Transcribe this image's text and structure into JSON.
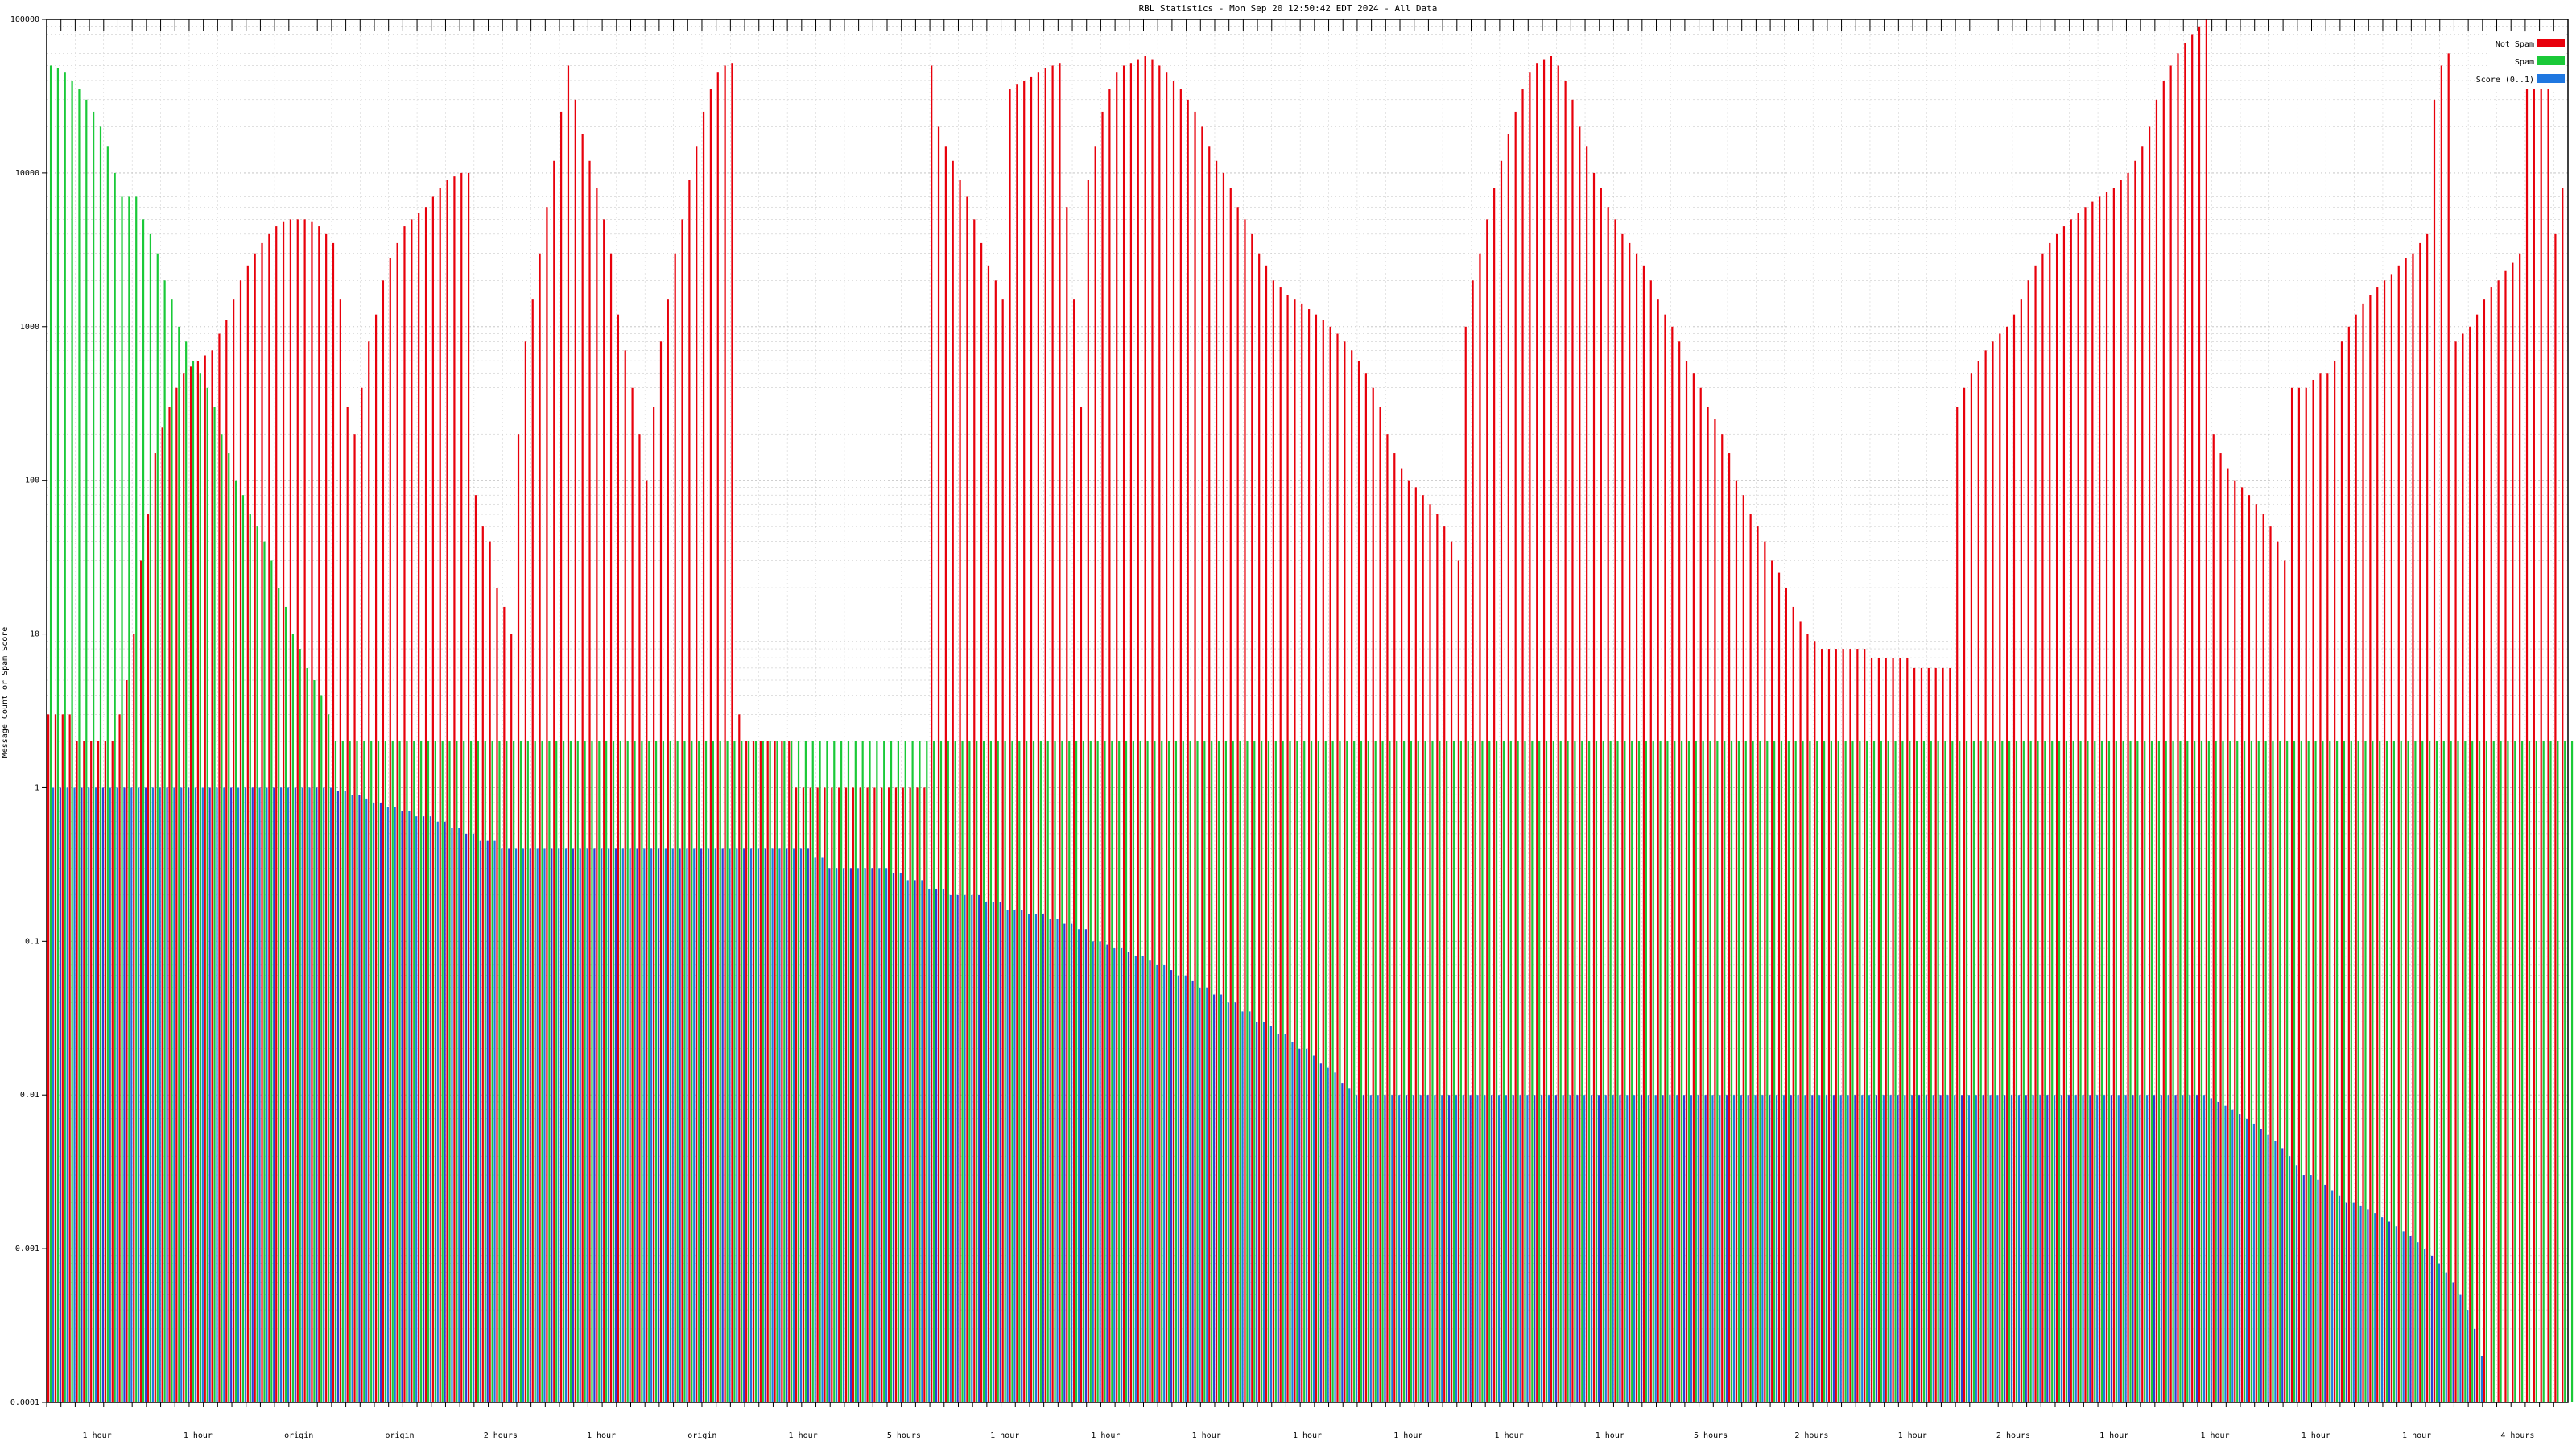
{
  "chart_data": {
    "type": "bar",
    "title": "RBL Statistics - Mon Sep 20 12:50:42 EDT 2024 - All Data",
    "ylabel": "Message Count or Spam Score",
    "xlabel": "",
    "y_scale": "log",
    "ylim": [
      0.0001,
      100000
    ],
    "y_ticks": [
      100000,
      10000,
      1000,
      100,
      10,
      1,
      0.1,
      0.01,
      0.001,
      0.0001
    ],
    "y_tick_labels": [
      "100000",
      "10000",
      "1000",
      "100",
      "10",
      "1",
      "0.1",
      "0.01",
      "0.001",
      "0.0001"
    ],
    "grid": true,
    "legend_position": "top-right",
    "colors": {
      "not_spam": "#e8000b",
      "spam": "#1ac938",
      "score": "#1f77e0",
      "score_alt": "#2a3fd8",
      "grid": "#bfbfbf",
      "frame": "#000000"
    },
    "series": [
      {
        "name": "Not Spam",
        "color": "#e8000b",
        "values": [
          3,
          3,
          3,
          3,
          2,
          2,
          2,
          2,
          2,
          2,
          3,
          5,
          10,
          30,
          60,
          150,
          220,
          300,
          400,
          500,
          550,
          600,
          650,
          700,
          900,
          1100,
          1500,
          2000,
          2500,
          3000,
          3500,
          4000,
          4500,
          4800,
          5000,
          5000,
          5000,
          4800,
          4500,
          4000,
          3500,
          1500,
          300,
          200,
          400,
          800,
          1200,
          2000,
          2800,
          3500,
          4500,
          5000,
          5500,
          6000,
          7000,
          8000,
          9000,
          9500,
          10000,
          10000,
          80,
          50,
          40,
          20,
          15,
          10,
          200,
          800,
          1500,
          3000,
          6000,
          12000,
          25000,
          50000,
          30000,
          18000,
          12000,
          8000,
          5000,
          3000,
          1200,
          700,
          400,
          200,
          100,
          300,
          800,
          1500,
          3000,
          5000,
          9000,
          15000,
          25000,
          35000,
          45000,
          50000,
          52000,
          3,
          2,
          2,
          2,
          2,
          2,
          2,
          2,
          1,
          1,
          1,
          1,
          1,
          1,
          1,
          1,
          1,
          1,
          1,
          1,
          1,
          1,
          1,
          1,
          1,
          1,
          1,
          50000,
          20000,
          15000,
          12000,
          9000,
          7000,
          5000,
          3500,
          2500,
          2000,
          1500,
          35000,
          38000,
          40000,
          42000,
          45000,
          48000,
          50000,
          52000,
          6000,
          1500,
          300,
          9000,
          15000,
          25000,
          35000,
          45000,
          50000,
          52000,
          55000,
          58000,
          55000,
          50000,
          45000,
          40000,
          35000,
          30000,
          25000,
          20000,
          15000,
          12000,
          10000,
          8000,
          6000,
          5000,
          4000,
          3000,
          2500,
          2000,
          1800,
          1600,
          1500,
          1400,
          1300,
          1200,
          1100,
          1000,
          900,
          800,
          700,
          600,
          500,
          400,
          300,
          200,
          150,
          120,
          100,
          90,
          80,
          70,
          60,
          50,
          40,
          30,
          1000,
          2000,
          3000,
          5000,
          8000,
          12000,
          18000,
          25000,
          35000,
          45000,
          52000,
          55000,
          58000,
          50000,
          40000,
          30000,
          20000,
          15000,
          10000,
          8000,
          6000,
          5000,
          4000,
          3500,
          3000,
          2500,
          2000,
          1500,
          1200,
          1000,
          800,
          600,
          500,
          400,
          300,
          250,
          200,
          150,
          100,
          80,
          60,
          50,
          40,
          30,
          25,
          20,
          15,
          12,
          10,
          9,
          8,
          8,
          8,
          8,
          8,
          8,
          8,
          7,
          7,
          7,
          7,
          7,
          7,
          6,
          6,
          6,
          6,
          6,
          6,
          300,
          400,
          500,
          600,
          700,
          800,
          900,
          1000,
          1200,
          1500,
          2000,
          2500,
          3000,
          3500,
          4000,
          4500,
          5000,
          5500,
          6000,
          6500,
          7000,
          7500,
          8000,
          9000,
          10000,
          12000,
          15000,
          20000,
          30000,
          40000,
          50000,
          60000,
          70000,
          80000,
          90000,
          100000,
          200,
          150,
          120,
          100,
          90,
          80,
          70,
          60,
          50,
          40,
          30,
          400,
          400,
          400,
          450,
          500,
          500,
          600,
          800,
          1000,
          1200,
          1400,
          1600,
          1800,
          2000,
          2200,
          2500,
          2800,
          3000,
          3500,
          4000,
          30000,
          50000,
          60000,
          800,
          900,
          1000,
          1200,
          1500,
          1800,
          2000,
          2300,
          2600,
          3000,
          55000,
          60000,
          65000,
          70000,
          4000,
          8000
        ]
      },
      {
        "name": "Spam",
        "color": "#1ac938",
        "values": [
          50000,
          48000,
          45000,
          40000,
          35000,
          30000,
          25000,
          20000,
          15000,
          10000,
          7000,
          7000,
          7000,
          5000,
          4000,
          3000,
          2000,
          1500,
          1000,
          800,
          600,
          500,
          400,
          300,
          200,
          150,
          100,
          80,
          60,
          50,
          40,
          30,
          20,
          15,
          10,
          8,
          6,
          5,
          4,
          3,
          2,
          2,
          2,
          2,
          2,
          2,
          2,
          2,
          2,
          2,
          2,
          2,
          2,
          2,
          2,
          2,
          2,
          2,
          2,
          2,
          2,
          2,
          2,
          2,
          2,
          2,
          2,
          2,
          2,
          2,
          2,
          2,
          2,
          2,
          2,
          2,
          2,
          2,
          2,
          2,
          2,
          2,
          2,
          2,
          2,
          2,
          2,
          2,
          2,
          2,
          2,
          2,
          2,
          2,
          2,
          2,
          2,
          2,
          2,
          2,
          2,
          2,
          2,
          2,
          2,
          2,
          2,
          2,
          2,
          2,
          2,
          2,
          2,
          2,
          2,
          2,
          2,
          2,
          2,
          2,
          2,
          2,
          2,
          2,
          2,
          2,
          2,
          2,
          2,
          2,
          2,
          2,
          2,
          2,
          2,
          2,
          2,
          2,
          2,
          2,
          2,
          2,
          2,
          2,
          2,
          2,
          2,
          2,
          2,
          2,
          2,
          2,
          2,
          2,
          2,
          2,
          2,
          2,
          2,
          2,
          2,
          2,
          2,
          2,
          2,
          2,
          2,
          2,
          2,
          2,
          2,
          2,
          2,
          2,
          2,
          2,
          2,
          2,
          2,
          2,
          2,
          2,
          2,
          2,
          2,
          2,
          2,
          2,
          2,
          2,
          2,
          2,
          2,
          2,
          2,
          2,
          2,
          2,
          2,
          2,
          2,
          2,
          2,
          2,
          2,
          2,
          2,
          2,
          2,
          2,
          2,
          2,
          2,
          2,
          2,
          2,
          2,
          2,
          2,
          2,
          2,
          2,
          2,
          2,
          2,
          2,
          2,
          2,
          2,
          2,
          2,
          2,
          2,
          2,
          2,
          2,
          2,
          2,
          2,
          2,
          2,
          2,
          2,
          2,
          2,
          2,
          2,
          2,
          2,
          2,
          2,
          2,
          2,
          2,
          2,
          2,
          2,
          2,
          2,
          2,
          2,
          2,
          2,
          2,
          2,
          2,
          2,
          2,
          2,
          2,
          2,
          2,
          2,
          2,
          2,
          2,
          2,
          2,
          2,
          2,
          2,
          2,
          2,
          2,
          2,
          2,
          2,
          2,
          2,
          2,
          2,
          2,
          2,
          2,
          2,
          2,
          2,
          2,
          2,
          2,
          2,
          2,
          2,
          2,
          2,
          2,
          2,
          2,
          2,
          2,
          2,
          2,
          2,
          2,
          2,
          2,
          2,
          2,
          2,
          2,
          2,
          2,
          2,
          2,
          2,
          2,
          2,
          2,
          2,
          2,
          2,
          2,
          2,
          2,
          2,
          2,
          2,
          2,
          2,
          2,
          2,
          2,
          2,
          2,
          2,
          2,
          2,
          2,
          2,
          2,
          2,
          2,
          2,
          2,
          2,
          2,
          2,
          2,
          2,
          2,
          2,
          2,
          2,
          2,
          2,
          2,
          2
        ]
      },
      {
        "name": "Score (0..1)",
        "color": "#1f77e0",
        "values": [
          1,
          1,
          1,
          1,
          1,
          1,
          1,
          1,
          1,
          1,
          1,
          1,
          1,
          1,
          1,
          1,
          1,
          1,
          1,
          1,
          1,
          1,
          1,
          1,
          1,
          1,
          1,
          1,
          1,
          1,
          1,
          1,
          1,
          1,
          1,
          1,
          1,
          1,
          1,
          1,
          0.95,
          0.95,
          0.9,
          0.9,
          0.85,
          0.8,
          0.8,
          0.75,
          0.75,
          0.7,
          0.7,
          0.65,
          0.65,
          0.65,
          0.6,
          0.6,
          0.55,
          0.55,
          0.5,
          0.5,
          0.45,
          0.45,
          0.45,
          0.4,
          0.4,
          0.4,
          0.4,
          0.4,
          0.4,
          0.4,
          0.4,
          0.4,
          0.4,
          0.4,
          0.4,
          0.4,
          0.4,
          0.4,
          0.4,
          0.4,
          0.4,
          0.4,
          0.4,
          0.4,
          0.4,
          0.4,
          0.4,
          0.4,
          0.4,
          0.4,
          0.4,
          0.4,
          0.4,
          0.4,
          0.4,
          0.4,
          0.4,
          0.4,
          0.4,
          0.4,
          0.4,
          0.4,
          0.4,
          0.4,
          0.4,
          0.4,
          0.4,
          0.35,
          0.35,
          0.3,
          0.3,
          0.3,
          0.3,
          0.3,
          0.3,
          0.3,
          0.3,
          0.3,
          0.28,
          0.28,
          0.25,
          0.25,
          0.25,
          0.22,
          0.22,
          0.22,
          0.2,
          0.2,
          0.2,
          0.2,
          0.2,
          0.18,
          0.18,
          0.18,
          0.16,
          0.16,
          0.16,
          0.15,
          0.15,
          0.15,
          0.14,
          0.14,
          0.13,
          0.13,
          0.12,
          0.12,
          0.1,
          0.1,
          0.095,
          0.09,
          0.09,
          0.085,
          0.08,
          0.08,
          0.075,
          0.07,
          0.07,
          0.065,
          0.06,
          0.06,
          0.055,
          0.05,
          0.05,
          0.045,
          0.045,
          0.04,
          0.04,
          0.035,
          0.035,
          0.03,
          0.03,
          0.028,
          0.025,
          0.025,
          0.022,
          0.02,
          0.02,
          0.018,
          0.016,
          0.015,
          0.014,
          0.012,
          0.011,
          0.01,
          0.01,
          0.01,
          0.01,
          0.01,
          0.01,
          0.01,
          0.01,
          0.01,
          0.01,
          0.01,
          0.01,
          0.01,
          0.01,
          0.01,
          0.01,
          0.01,
          0.01,
          0.01,
          0.01,
          0.01,
          0.01,
          0.01,
          0.01,
          0.01,
          0.01,
          0.01,
          0.01,
          0.01,
          0.01,
          0.01,
          0.01,
          0.01,
          0.01,
          0.01,
          0.01,
          0.01,
          0.01,
          0.01,
          0.01,
          0.01,
          0.01,
          0.01,
          0.01,
          0.01,
          0.01,
          0.01,
          0.01,
          0.01,
          0.01,
          0.01,
          0.01,
          0.01,
          0.01,
          0.01,
          0.01,
          0.01,
          0.01,
          0.01,
          0.01,
          0.01,
          0.01,
          0.01,
          0.01,
          0.01,
          0.01,
          0.01,
          0.01,
          0.01,
          0.01,
          0.01,
          0.01,
          0.01,
          0.01,
          0.01,
          0.01,
          0.01,
          0.01,
          0.01,
          0.01,
          0.01,
          0.01,
          0.01,
          0.01,
          0.01,
          0.01,
          0.01,
          0.01,
          0.01,
          0.01,
          0.01,
          0.01,
          0.01,
          0.01,
          0.01,
          0.01,
          0.01,
          0.01,
          0.01,
          0.01,
          0.01,
          0.01,
          0.01,
          0.01,
          0.01,
          0.01,
          0.01,
          0.01,
          0.01,
          0.01,
          0.01,
          0.01,
          0.01,
          0.01,
          0.01,
          0.01,
          0.01,
          0.01,
          0.01,
          0.01,
          0.0095,
          0.009,
          0.0085,
          0.008,
          0.0075,
          0.007,
          0.0065,
          0.006,
          0.0055,
          0.005,
          0.0045,
          0.004,
          0.0035,
          0.003,
          0.003,
          0.0028,
          0.0026,
          0.0024,
          0.0022,
          0.002,
          0.002,
          0.0019,
          0.0018,
          0.0017,
          0.0016,
          0.0015,
          0.0014,
          0.0013,
          0.0012,
          0.0011,
          0.001,
          0.0009,
          0.0008,
          0.0007,
          0.0006,
          0.0005,
          0.0004,
          0.0003,
          0.0002
        ]
      }
    ],
    "x_tick_labels_bottom": [
      "1 hour",
      "1 hour",
      "origin",
      "origin",
      "2 hours",
      "1 hour",
      "origin",
      "1 hour",
      "5 hours",
      "1 hour",
      "1 hour",
      "1 hour",
      "1 hour",
      "1 hour",
      "1 hour",
      "1 hour",
      "5 hours",
      "2 hours",
      "1 hour",
      "2 hours",
      "1 hour",
      "1 hour",
      "1 hour",
      "1 hour",
      "4 hours"
    ]
  }
}
